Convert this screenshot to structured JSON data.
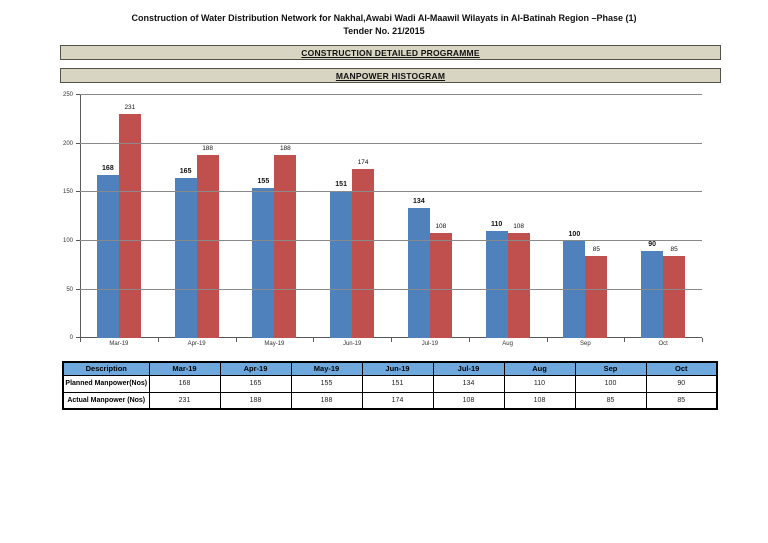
{
  "header": {
    "title_line1": "Construction of Water Distribution Network for Nakhal,Awabi Wadi  Al-Maawil Wilayats in Al-Batinah Region –Phase (1)",
    "title_line2": "Tender No. 21/2015"
  },
  "banners": [
    {
      "label": "CONSTRUCTION DETAILED PROGRAMME"
    },
    {
      "label": "MANPOWER HISTOGRAM"
    }
  ],
  "chart_data": {
    "type": "bar",
    "title": "MANPOWER HISTOGRAM",
    "categories": [
      "Mar-19",
      "Apr-19",
      "May-19",
      "Jun-19",
      "Jul-19",
      "Aug",
      "Sep",
      "Oct"
    ],
    "series": [
      {
        "name": "Planned Manpower(Nos)",
        "color": "#4F81BD",
        "values": [
          168,
          165,
          155,
          151,
          134,
          110,
          100,
          90
        ]
      },
      {
        "name": "Actual Manpower (Nos)",
        "color": "#C0504D",
        "values": [
          231,
          188,
          188,
          174,
          108,
          108,
          85,
          85
        ]
      }
    ],
    "xlabel": "",
    "ylabel": "",
    "ylim": [
      0,
      250
    ],
    "yticks": [
      0,
      50,
      100,
      150,
      200,
      250
    ],
    "grid": true,
    "legend_position": "none",
    "data_labels": true
  },
  "table": {
    "columns": [
      "Description",
      "Mar-19",
      "Apr-19",
      "May-19",
      "Jun-19",
      "Jul-19",
      "Aug",
      "Sep",
      "Oct"
    ],
    "rows": [
      {
        "label": "Planned Manpower(Nos)",
        "values": [
          168,
          165,
          155,
          151,
          134,
          110,
          100,
          90
        ]
      },
      {
        "label": "Actual Manpower (Nos)",
        "values": [
          231,
          188,
          188,
          174,
          108,
          108,
          85,
          85
        ]
      }
    ],
    "header_bg": "#6FA8DC"
  },
  "colors": {
    "planned_bar": "#4F81BD",
    "actual_bar": "#C0504D",
    "banner_bg": "#D9D5C3",
    "table_header_bg": "#6FA8DC",
    "gridline": "#8A8A8A"
  }
}
